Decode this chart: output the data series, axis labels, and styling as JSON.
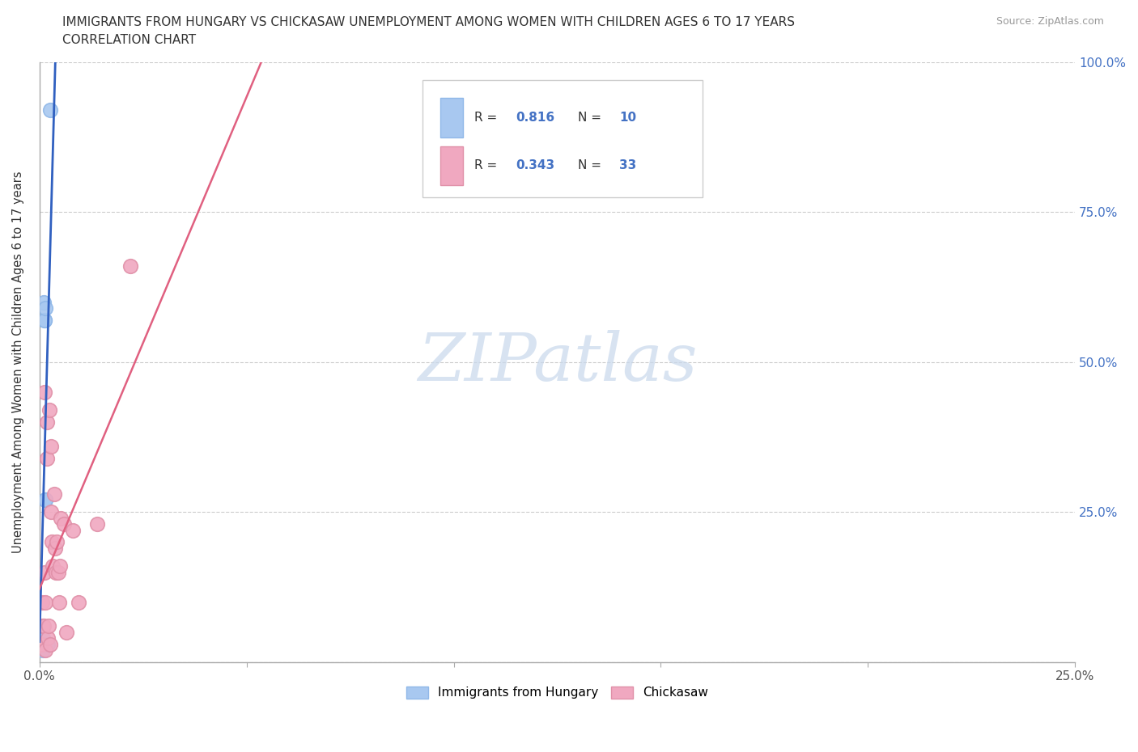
{
  "title_line1": "IMMIGRANTS FROM HUNGARY VS CHICKASAW UNEMPLOYMENT AMONG WOMEN WITH CHILDREN AGES 6 TO 17 YEARS",
  "title_line2": "CORRELATION CHART",
  "source": "Source: ZipAtlas.com",
  "ylabel": "Unemployment Among Women with Children Ages 6 to 17 years",
  "xlim": [
    0.0,
    0.25
  ],
  "ylim": [
    0.0,
    1.0
  ],
  "x_ticks": [
    0.0,
    0.05,
    0.1,
    0.15,
    0.2,
    0.25
  ],
  "x_tick_labels": [
    "0.0%",
    "",
    "",
    "",
    "",
    "25.0%"
  ],
  "y_ticks": [
    0.0,
    0.25,
    0.5,
    0.75,
    1.0
  ],
  "y_tick_labels_right": [
    "",
    "25.0%",
    "50.0%",
    "75.0%",
    "100.0%"
  ],
  "hungary_color": "#a8c8f0",
  "hungary_edge_color": "#90b8e8",
  "chickasaw_color": "#f0a8c0",
  "chickasaw_edge_color": "#e090a8",
  "hungary_line_color": "#3060c0",
  "chickasaw_line_color": "#e06080",
  "legend_color": "#4472c4",
  "watermark_text": "ZIPatlas",
  "watermark_color": "#c8d8ec",
  "hungary_x": [
    0.0008,
    0.0008,
    0.001,
    0.0012,
    0.0013,
    0.0014,
    0.0015,
    0.0015,
    0.002,
    0.0025
  ],
  "hungary_y": [
    0.02,
    0.04,
    0.6,
    0.57,
    0.57,
    0.59,
    0.27,
    0.27,
    0.03,
    0.92
  ],
  "chickasaw_x": [
    0.0003,
    0.0005,
    0.0007,
    0.0008,
    0.001,
    0.0012,
    0.0013,
    0.0015,
    0.0015,
    0.0018,
    0.0018,
    0.002,
    0.0022,
    0.0023,
    0.0025,
    0.0027,
    0.0028,
    0.003,
    0.0032,
    0.0035,
    0.0038,
    0.004,
    0.0042,
    0.0045,
    0.0048,
    0.005,
    0.0052,
    0.006,
    0.0065,
    0.008,
    0.0095,
    0.014,
    0.022
  ],
  "chickasaw_y": [
    0.03,
    0.03,
    0.1,
    0.06,
    0.06,
    0.15,
    0.45,
    0.1,
    0.02,
    0.4,
    0.34,
    0.04,
    0.06,
    0.42,
    0.03,
    0.25,
    0.36,
    0.2,
    0.16,
    0.28,
    0.19,
    0.15,
    0.2,
    0.15,
    0.1,
    0.16,
    0.24,
    0.23,
    0.05,
    0.22,
    0.1,
    0.23,
    0.66
  ]
}
